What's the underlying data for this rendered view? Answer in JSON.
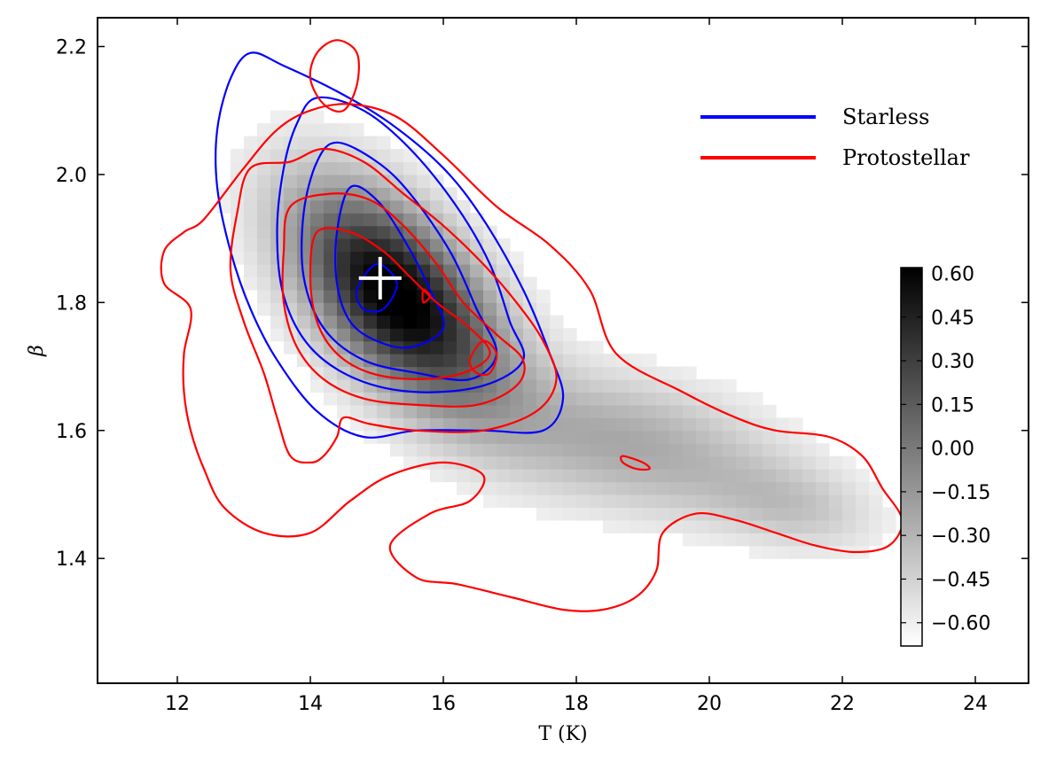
{
  "chart_data": {
    "type": "heatmap",
    "title": "",
    "xlabel": "T (K)",
    "ylabel": "β",
    "xlim": [
      10.8,
      24.8
    ],
    "ylim": [
      1.205,
      2.245
    ],
    "xticks": [
      12,
      14,
      16,
      18,
      20,
      22,
      24
    ],
    "yticks": [
      1.4,
      1.6,
      1.8,
      2.0,
      2.2
    ],
    "xtick_labels": [
      "12",
      "14",
      "16",
      "18",
      "20",
      "22",
      "24"
    ],
    "ytick_labels": [
      "1.4",
      "1.6",
      "1.8",
      "2.0",
      "2.2"
    ],
    "grid": false,
    "legend_position": "top-right",
    "colormap": "gray_r",
    "colorbar": {
      "range": [
        -0.68,
        0.62
      ],
      "ticks": [
        0.6,
        0.45,
        0.3,
        0.15,
        0.0,
        -0.15,
        -0.3,
        -0.45,
        -0.6
      ],
      "tick_labels": [
        "0.60",
        "0.45",
        "0.30",
        "0.15",
        "0.00",
        "−0.15",
        "−0.30",
        "−0.45",
        "−0.60"
      ]
    },
    "density_blobs": [
      {
        "cx": 15.3,
        "cy": 1.81,
        "sx": 1.1,
        "sy": 0.12,
        "rho": -0.55,
        "w": 1.0
      },
      {
        "cx": 18.8,
        "cy": 1.58,
        "sx": 1.6,
        "sy": 0.08,
        "rho": -0.35,
        "w": 0.32
      },
      {
        "cx": 21.3,
        "cy": 1.48,
        "sx": 0.9,
        "sy": 0.05,
        "rho": -0.3,
        "w": 0.18
      }
    ],
    "series": [
      {
        "name": "Starless",
        "color": "#0000ff",
        "contours": [
          [
            [
              13.1,
              2.19
            ],
            [
              13.6,
              2.17
            ],
            [
              14.4,
              2.13
            ],
            [
              15.2,
              2.08
            ],
            [
              16.0,
              2.01
            ],
            [
              16.6,
              1.93
            ],
            [
              17.2,
              1.82
            ],
            [
              17.6,
              1.72
            ],
            [
              17.8,
              1.65
            ],
            [
              17.5,
              1.6
            ],
            [
              16.6,
              1.6
            ],
            [
              15.6,
              1.6
            ],
            [
              14.8,
              1.59
            ],
            [
              14.1,
              1.63
            ],
            [
              13.5,
              1.71
            ],
            [
              13.1,
              1.79
            ],
            [
              12.8,
              1.88
            ],
            [
              12.6,
              1.98
            ],
            [
              12.6,
              2.07
            ],
            [
              12.8,
              2.15
            ],
            [
              13.1,
              2.19
            ]
          ],
          [
            [
              14.1,
              2.12
            ],
            [
              14.8,
              2.1
            ],
            [
              15.5,
              2.04
            ],
            [
              16.2,
              1.95
            ],
            [
              16.7,
              1.86
            ],
            [
              17.0,
              1.77
            ],
            [
              17.2,
              1.71
            ],
            [
              16.6,
              1.67
            ],
            [
              15.6,
              1.66
            ],
            [
              14.7,
              1.68
            ],
            [
              14.0,
              1.73
            ],
            [
              13.6,
              1.81
            ],
            [
              13.5,
              1.91
            ],
            [
              13.6,
              2.01
            ],
            [
              13.8,
              2.08
            ],
            [
              14.1,
              2.12
            ]
          ],
          [
            [
              14.4,
              2.05
            ],
            [
              15.0,
              2.02
            ],
            [
              15.5,
              1.97
            ],
            [
              16.1,
              1.88
            ],
            [
              16.5,
              1.79
            ],
            [
              16.8,
              1.72
            ],
            [
              16.4,
              1.68
            ],
            [
              15.6,
              1.69
            ],
            [
              14.8,
              1.71
            ],
            [
              14.2,
              1.76
            ],
            [
              13.9,
              1.84
            ],
            [
              13.9,
              1.94
            ],
            [
              14.1,
              2.02
            ],
            [
              14.4,
              2.05
            ]
          ],
          [
            [
              14.6,
              1.98
            ],
            [
              15.0,
              1.96
            ],
            [
              15.4,
              1.9
            ],
            [
              15.8,
              1.82
            ],
            [
              16.0,
              1.76
            ],
            [
              15.5,
              1.73
            ],
            [
              15.0,
              1.74
            ],
            [
              14.6,
              1.77
            ],
            [
              14.4,
              1.83
            ],
            [
              14.4,
              1.91
            ],
            [
              14.6,
              1.98
            ]
          ],
          [
            [
              15.0,
              1.86
            ],
            [
              15.3,
              1.83
            ],
            [
              15.1,
              1.79
            ],
            [
              14.8,
              1.79
            ],
            [
              14.7,
              1.82
            ],
            [
              15.0,
              1.86
            ]
          ]
        ]
      },
      {
        "name": "Protostellar",
        "color": "#ff0000",
        "contours": [
          [
            [
              12.4,
              1.93
            ],
            [
              13.0,
              2.01
            ],
            [
              13.5,
              2.07
            ],
            [
              14.0,
              2.1
            ],
            [
              14.6,
              2.11
            ],
            [
              15.3,
              2.09
            ],
            [
              16.0,
              2.03
            ],
            [
              16.8,
              1.95
            ],
            [
              17.6,
              1.89
            ],
            [
              18.2,
              1.82
            ],
            [
              18.6,
              1.72
            ],
            [
              19.6,
              1.66
            ],
            [
              20.4,
              1.62
            ],
            [
              21.0,
              1.6
            ],
            [
              21.8,
              1.59
            ],
            [
              22.3,
              1.56
            ],
            [
              22.6,
              1.51
            ],
            [
              22.9,
              1.46
            ],
            [
              22.7,
              1.42
            ],
            [
              22.2,
              1.41
            ],
            [
              21.6,
              1.42
            ],
            [
              21.0,
              1.44
            ],
            [
              20.4,
              1.46
            ],
            [
              19.8,
              1.47
            ],
            [
              19.3,
              1.44
            ],
            [
              19.2,
              1.38
            ],
            [
              18.9,
              1.34
            ],
            [
              18.4,
              1.32
            ],
            [
              17.8,
              1.32
            ],
            [
              17.0,
              1.34
            ],
            [
              16.2,
              1.36
            ],
            [
              15.6,
              1.37
            ],
            [
              15.2,
              1.42
            ],
            [
              15.8,
              1.47
            ],
            [
              16.4,
              1.49
            ],
            [
              16.6,
              1.53
            ],
            [
              16.0,
              1.55
            ],
            [
              15.2,
              1.53
            ],
            [
              14.6,
              1.49
            ],
            [
              14.0,
              1.44
            ],
            [
              13.3,
              1.44
            ],
            [
              12.7,
              1.48
            ],
            [
              12.4,
              1.54
            ],
            [
              12.2,
              1.6
            ],
            [
              12.1,
              1.66
            ],
            [
              12.1,
              1.72
            ],
            [
              12.2,
              1.79
            ],
            [
              11.8,
              1.83
            ],
            [
              11.8,
              1.88
            ],
            [
              12.1,
              1.91
            ],
            [
              12.4,
              1.93
            ]
          ],
          [
            [
              13.1,
              2.01
            ],
            [
              13.7,
              2.02
            ],
            [
              14.2,
              2.04
            ],
            [
              14.8,
              2.02
            ],
            [
              15.4,
              1.97
            ],
            [
              16.0,
              1.92
            ],
            [
              16.6,
              1.86
            ],
            [
              17.1,
              1.8
            ],
            [
              17.5,
              1.74
            ],
            [
              17.7,
              1.68
            ],
            [
              17.4,
              1.63
            ],
            [
              16.6,
              1.6
            ],
            [
              15.6,
              1.6
            ],
            [
              14.9,
              1.61
            ],
            [
              14.5,
              1.62
            ],
            [
              14.4,
              1.59
            ],
            [
              14.2,
              1.56
            ],
            [
              14.0,
              1.55
            ],
            [
              13.7,
              1.56
            ],
            [
              13.5,
              1.62
            ],
            [
              13.3,
              1.69
            ],
            [
              13.0,
              1.77
            ],
            [
              12.8,
              1.85
            ],
            [
              12.9,
              1.94
            ],
            [
              13.1,
              2.01
            ]
          ],
          [
            [
              13.7,
              1.95
            ],
            [
              14.3,
              1.97
            ],
            [
              14.9,
              1.96
            ],
            [
              15.4,
              1.92
            ],
            [
              15.9,
              1.86
            ],
            [
              16.3,
              1.8
            ],
            [
              16.8,
              1.75
            ],
            [
              17.2,
              1.71
            ],
            [
              17.1,
              1.67
            ],
            [
              16.5,
              1.64
            ],
            [
              15.6,
              1.64
            ],
            [
              14.8,
              1.65
            ],
            [
              14.2,
              1.68
            ],
            [
              13.8,
              1.73
            ],
            [
              13.6,
              1.8
            ],
            [
              13.6,
              1.88
            ],
            [
              13.7,
              1.95
            ]
          ],
          [
            [
              14.1,
              1.91
            ],
            [
              14.6,
              1.91
            ],
            [
              15.1,
              1.88
            ],
            [
              15.5,
              1.84
            ],
            [
              15.9,
              1.8
            ],
            [
              16.4,
              1.76
            ],
            [
              16.7,
              1.72
            ],
            [
              16.3,
              1.69
            ],
            [
              15.6,
              1.68
            ],
            [
              14.9,
              1.69
            ],
            [
              14.4,
              1.72
            ],
            [
              14.1,
              1.77
            ],
            [
              14.0,
              1.84
            ],
            [
              14.1,
              1.91
            ]
          ],
          [
            [
              14.4,
              2.21
            ],
            [
              14.7,
              2.19
            ],
            [
              14.7,
              2.14
            ],
            [
              14.5,
              2.1
            ],
            [
              14.2,
              2.11
            ],
            [
              14.0,
              2.15
            ],
            [
              14.1,
              2.19
            ],
            [
              14.4,
              2.21
            ]
          ],
          [
            [
              16.6,
              1.74
            ],
            [
              16.8,
              1.72
            ],
            [
              16.7,
              1.69
            ],
            [
              16.5,
              1.69
            ],
            [
              16.4,
              1.71
            ],
            [
              16.6,
              1.74
            ]
          ],
          [
            [
              18.7,
              1.56
            ],
            [
              19.0,
              1.55
            ],
            [
              19.1,
              1.54
            ],
            [
              18.9,
              1.54
            ],
            [
              18.7,
              1.55
            ],
            [
              18.7,
              1.56
            ]
          ],
          [
            [
              15.7,
              1.82
            ],
            [
              15.8,
              1.81
            ],
            [
              15.7,
              1.8
            ],
            [
              15.7,
              1.82
            ]
          ]
        ]
      }
    ],
    "annotations": [
      {
        "type": "cross",
        "x": 15.05,
        "y": 1.838,
        "color": "#ffffff"
      }
    ]
  }
}
